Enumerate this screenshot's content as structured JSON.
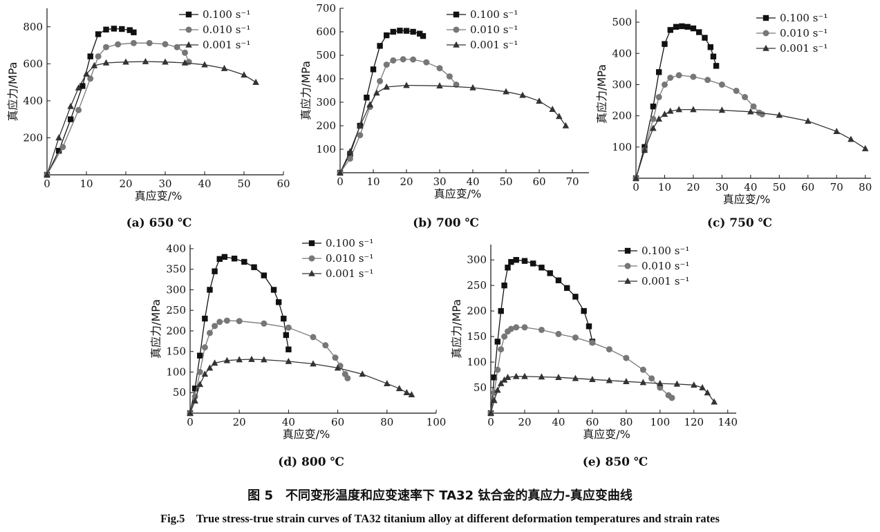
{
  "figure": {
    "caption_zh": "图 5　不同变形温度和应变速率下 TA32 钛合金的真应力-真应变曲线",
    "caption_en": "Fig.5　True stress-true strain curves of TA32 titanium alloy at different deformation temperatures and strain rates"
  },
  "legend_labels": [
    "0.100 s⁻¹",
    "0.010 s⁻¹",
    "0.001 s⁻¹"
  ],
  "series_colors": [
    "#111111",
    "#777777",
    "#333333"
  ],
  "chart_data": [
    {
      "type": "line",
      "subcaption": "(a) 650 ℃",
      "xlabel": "真应变/%",
      "ylabel": "真应力/MPa",
      "xlim": [
        0,
        60
      ],
      "ylim": [
        0,
        900
      ],
      "xticks": [
        0,
        10,
        20,
        30,
        40,
        50,
        60
      ],
      "yticks": [
        200,
        400,
        600,
        800
      ],
      "series": [
        {
          "name": "0.100 s⁻¹",
          "marker": "square",
          "x": [
            0,
            3,
            6,
            9,
            11,
            13,
            15,
            17,
            19,
            21,
            22
          ],
          "y": [
            0,
            130,
            300,
            480,
            640,
            760,
            785,
            790,
            788,
            782,
            770
          ]
        },
        {
          "name": "0.010 s⁻¹",
          "marker": "circle",
          "x": [
            0,
            4,
            8,
            11,
            13,
            15,
            18,
            22,
            26,
            30,
            33,
            35,
            36
          ],
          "y": [
            0,
            150,
            350,
            520,
            640,
            690,
            705,
            712,
            712,
            706,
            690,
            660,
            610
          ]
        },
        {
          "name": "0.001 s⁻¹",
          "marker": "triangle",
          "x": [
            0,
            3,
            6,
            8,
            10,
            12,
            15,
            20,
            25,
            30,
            35,
            40,
            45,
            50,
            53
          ],
          "y": [
            0,
            200,
            370,
            470,
            545,
            590,
            605,
            610,
            612,
            610,
            605,
            595,
            575,
            540,
            500
          ]
        }
      ]
    },
    {
      "type": "line",
      "subcaption": "(b) 700 ℃",
      "xlabel": "真应变/%",
      "ylabel": "真应力/MPa",
      "xlim": [
        0,
        75
      ],
      "ylim": [
        0,
        700
      ],
      "xticks": [
        0,
        10,
        20,
        30,
        40,
        50,
        60,
        70
      ],
      "yticks": [
        100,
        200,
        300,
        400,
        500,
        600,
        700
      ],
      "series": [
        {
          "name": "0.100 s⁻¹",
          "marker": "square",
          "x": [
            0,
            3,
            6,
            8,
            10,
            12,
            14,
            16,
            18,
            20,
            22,
            24,
            25
          ],
          "y": [
            0,
            80,
            200,
            320,
            440,
            540,
            585,
            600,
            605,
            604,
            600,
            592,
            582
          ]
        },
        {
          "name": "0.010 s⁻¹",
          "marker": "circle",
          "x": [
            0,
            3,
            6,
            9,
            12,
            14,
            16,
            19,
            22,
            26,
            30,
            33,
            35
          ],
          "y": [
            0,
            60,
            160,
            280,
            390,
            460,
            478,
            483,
            482,
            470,
            445,
            410,
            375
          ]
        },
        {
          "name": "0.001 s⁻¹",
          "marker": "triangle",
          "x": [
            0,
            3,
            6,
            9,
            11,
            14,
            20,
            30,
            40,
            50,
            55,
            60,
            64,
            66,
            68
          ],
          "y": [
            0,
            90,
            200,
            290,
            340,
            365,
            372,
            370,
            362,
            345,
            330,
            305,
            270,
            240,
            200
          ]
        }
      ]
    },
    {
      "type": "line",
      "subcaption": "(c) 750 ℃",
      "xlabel": "真应变/%",
      "ylabel": "真应力/MPa",
      "xlim": [
        0,
        82
      ],
      "ylim": [
        0,
        540
      ],
      "xticks": [
        0,
        10,
        20,
        30,
        40,
        50,
        60,
        70,
        80
      ],
      "yticks": [
        100,
        200,
        300,
        400,
        500
      ],
      "series": [
        {
          "name": "0.100 s⁻¹",
          "marker": "square",
          "x": [
            0,
            3,
            6,
            8,
            10,
            12,
            14,
            16,
            18,
            20,
            22,
            24,
            26,
            27,
            28
          ],
          "y": [
            0,
            100,
            230,
            340,
            430,
            475,
            485,
            487,
            485,
            480,
            468,
            450,
            420,
            390,
            360
          ]
        },
        {
          "name": "0.010 s⁻¹",
          "marker": "circle",
          "x": [
            0,
            3,
            6,
            8,
            10,
            12,
            15,
            20,
            25,
            30,
            35,
            38,
            41,
            43,
            44
          ],
          "y": [
            0,
            90,
            190,
            260,
            300,
            322,
            330,
            325,
            315,
            300,
            280,
            260,
            230,
            210,
            205
          ]
        },
        {
          "name": "0.001 s⁻¹",
          "marker": "triangle",
          "x": [
            0,
            3,
            6,
            8,
            10,
            12,
            15,
            20,
            30,
            40,
            50,
            60,
            70,
            75,
            80
          ],
          "y": [
            0,
            90,
            160,
            190,
            205,
            215,
            220,
            220,
            218,
            213,
            202,
            183,
            150,
            125,
            95
          ]
        }
      ]
    },
    {
      "type": "line",
      "subcaption": "(d) 800 ℃",
      "xlabel": "真应变/%",
      "ylabel": "真应力/MPa",
      "xlim": [
        0,
        100
      ],
      "ylim": [
        0,
        410
      ],
      "xticks": [
        0,
        20,
        40,
        60,
        80,
        100
      ],
      "yticks": [
        50,
        100,
        150,
        200,
        250,
        300,
        350,
        400
      ],
      "series": [
        {
          "name": "0.100 s⁻¹",
          "marker": "square",
          "x": [
            0,
            2,
            4,
            6,
            8,
            10,
            12,
            14,
            18,
            22,
            26,
            30,
            34,
            36,
            38,
            39,
            40
          ],
          "y": [
            0,
            60,
            140,
            230,
            300,
            345,
            375,
            380,
            376,
            368,
            355,
            335,
            300,
            270,
            230,
            190,
            155
          ]
        },
        {
          "name": "0.010 s⁻¹",
          "marker": "circle",
          "x": [
            0,
            2,
            4,
            6,
            8,
            10,
            12,
            15,
            20,
            30,
            40,
            50,
            55,
            59,
            61,
            63,
            64
          ],
          "y": [
            0,
            40,
            100,
            160,
            195,
            212,
            222,
            225,
            224,
            218,
            208,
            185,
            165,
            135,
            115,
            95,
            85
          ]
        },
        {
          "name": "0.001 s⁻¹",
          "marker": "triangle",
          "x": [
            0,
            2,
            4,
            6,
            8,
            10,
            15,
            20,
            25,
            30,
            40,
            50,
            60,
            70,
            80,
            85,
            88,
            90
          ],
          "y": [
            0,
            30,
            70,
            95,
            110,
            122,
            128,
            130,
            131,
            130,
            126,
            120,
            110,
            95,
            72,
            60,
            50,
            45
          ]
        }
      ]
    },
    {
      "type": "line",
      "subcaption": "(e) 850 ℃",
      "xlabel": "真应变/%",
      "ylabel": "真应力/MPa",
      "xlim": [
        0,
        145
      ],
      "ylim": [
        0,
        330
      ],
      "xticks": [
        0,
        20,
        40,
        60,
        80,
        100,
        120,
        140
      ],
      "yticks": [
        50,
        100,
        150,
        200,
        250,
        300
      ],
      "series": [
        {
          "name": "0.100 s⁻¹",
          "marker": "square",
          "x": [
            0,
            2,
            4,
            6,
            8,
            10,
            12,
            15,
            20,
            25,
            30,
            35,
            40,
            45,
            50,
            55,
            58,
            60
          ],
          "y": [
            0,
            70,
            140,
            200,
            250,
            285,
            296,
            300,
            298,
            293,
            285,
            274,
            260,
            245,
            228,
            200,
            170,
            140
          ]
        },
        {
          "name": "0.010 s⁻¹",
          "marker": "circle",
          "x": [
            0,
            2,
            4,
            6,
            8,
            10,
            12,
            15,
            20,
            30,
            40,
            50,
            60,
            70,
            80,
            90,
            95,
            100,
            105,
            107
          ],
          "y": [
            0,
            40,
            85,
            125,
            150,
            160,
            165,
            168,
            168,
            163,
            155,
            148,
            138,
            125,
            108,
            85,
            68,
            50,
            35,
            30
          ]
        },
        {
          "name": "0.001 s⁻¹",
          "marker": "triangle",
          "x": [
            0,
            2,
            4,
            6,
            8,
            10,
            15,
            20,
            30,
            40,
            50,
            60,
            70,
            80,
            90,
            100,
            110,
            120,
            125,
            128,
            132
          ],
          "y": [
            0,
            25,
            45,
            58,
            65,
            70,
            72,
            72,
            71,
            70,
            68,
            66,
            64,
            62,
            60,
            58,
            57,
            55,
            50,
            40,
            22
          ]
        }
      ]
    }
  ]
}
